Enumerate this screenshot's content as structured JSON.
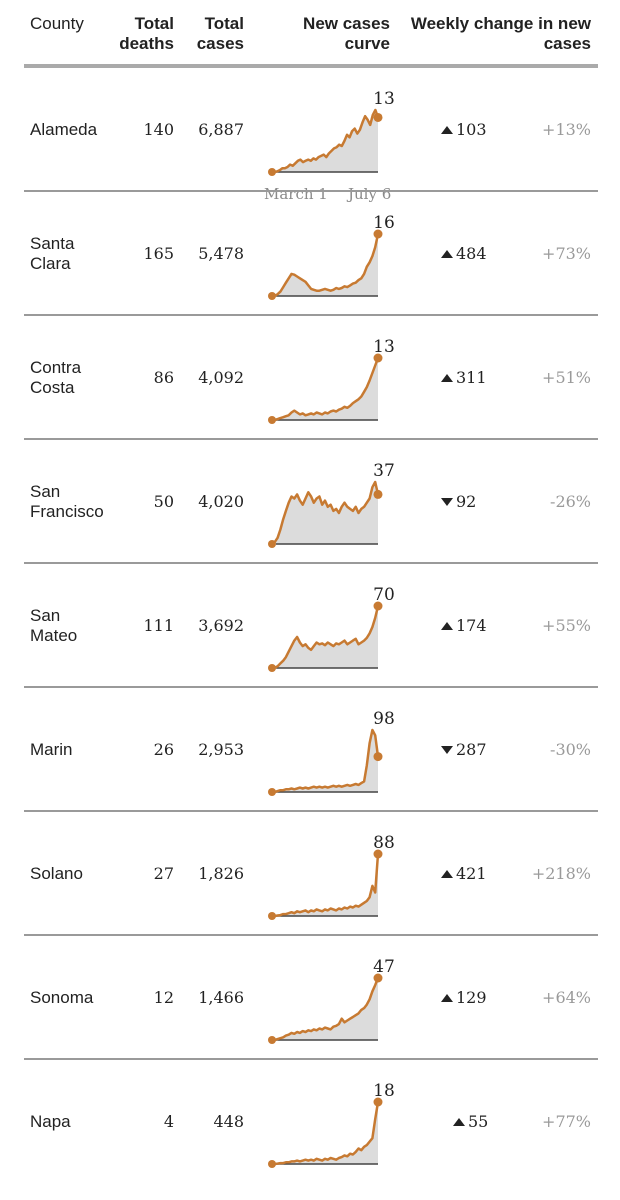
{
  "header": {
    "county": "County",
    "deaths_line1": "Total",
    "deaths_line2": "deaths",
    "cases_line1": "Total",
    "cases_line2": "cases",
    "curve_line1": "New cases",
    "curve_line2": "curve",
    "change_line1": "Weekly change in new",
    "change_line2": "cases"
  },
  "axis": {
    "start": "March 1",
    "end": "July 6"
  },
  "colors": {
    "curve": "#c77a32",
    "fill": "#dcdcdc",
    "baseline": "#444444",
    "up": "#222222",
    "down": "#222222",
    "pct": "#9a9a9a"
  },
  "rows": [
    {
      "county": [
        "Alameda"
      ],
      "deaths": "140",
      "cases": "6,887",
      "latest": "13",
      "direction": "up",
      "change": "103",
      "pct": "+13%",
      "chart_data": {
        "type": "area",
        "values": [
          0,
          0,
          0.5,
          1.5,
          3,
          3,
          4,
          6,
          5,
          7,
          9,
          10,
          8,
          9,
          10,
          9,
          11,
          10,
          12,
          13,
          14,
          12,
          15,
          17,
          19,
          20,
          22,
          21,
          25,
          30,
          28,
          33,
          35,
          31,
          34,
          40,
          45,
          42,
          38,
          46,
          50,
          44
        ],
        "end_marker": 44
      }
    },
    {
      "county": [
        "Santa",
        "Clara"
      ],
      "deaths": "165",
      "cases": "5,478",
      "latest": "16",
      "direction": "up",
      "change": "484",
      "pct": "+73%",
      "chart_data": {
        "type": "area",
        "values": [
          0,
          0,
          2,
          5,
          10,
          15,
          20,
          25,
          24,
          22,
          20,
          18,
          16,
          12,
          8,
          7,
          6,
          6,
          7,
          8,
          7,
          6,
          7,
          9,
          8,
          9,
          11,
          10,
          12,
          14,
          15,
          18,
          20,
          25,
          33,
          38,
          45,
          55,
          70
        ],
        "end_marker": 70
      }
    },
    {
      "county": [
        "Contra",
        "Costa"
      ],
      "deaths": "86",
      "cases": "4,092",
      "latest": "13",
      "direction": "up",
      "change": "311",
      "pct": "+51%",
      "chart_data": {
        "type": "area",
        "values": [
          0,
          0,
          1,
          2,
          3,
          4,
          5,
          8,
          10,
          8,
          6,
          7,
          5,
          6,
          7,
          6,
          8,
          7,
          6,
          8,
          7,
          9,
          10,
          9,
          11,
          12,
          14,
          13,
          15,
          18,
          20,
          22,
          25,
          30,
          35,
          42,
          50,
          58,
          66
        ],
        "end_marker": 66
      }
    },
    {
      "county": [
        "San",
        "Francisco"
      ],
      "deaths": "50",
      "cases": "4,020",
      "latest": "37",
      "direction": "down",
      "change": "92",
      "pct": "-26%",
      "chart_data": {
        "type": "area",
        "values": [
          0,
          2,
          6,
          14,
          24,
          32,
          40,
          46,
          44,
          48,
          42,
          38,
          44,
          50,
          46,
          40,
          44,
          46,
          38,
          42,
          36,
          38,
          32,
          34,
          30,
          36,
          40,
          36,
          34,
          32,
          36,
          30,
          34,
          36,
          40,
          44,
          55,
          60,
          48
        ],
        "end_marker": 48
      }
    },
    {
      "county": [
        "San",
        "Mateo"
      ],
      "deaths": "111",
      "cases": "3,692",
      "latest": "70",
      "direction": "up",
      "change": "174",
      "pct": "+55%",
      "chart_data": {
        "type": "area",
        "values": [
          0,
          0,
          2,
          5,
          8,
          12,
          18,
          24,
          30,
          34,
          28,
          24,
          26,
          22,
          20,
          24,
          28,
          26,
          27,
          25,
          28,
          26,
          24,
          27,
          26,
          28,
          30,
          26,
          28,
          30,
          32,
          26,
          28,
          30,
          33,
          38,
          45,
          55,
          68
        ],
        "end_marker": 68
      }
    },
    {
      "county": [
        "Marin"
      ],
      "deaths": "26",
      "cases": "2,953",
      "latest": "98",
      "direction": "down",
      "change": "287",
      "pct": "-30%",
      "chart_data": {
        "type": "area",
        "values": [
          0,
          0,
          1,
          2,
          2,
          3,
          3,
          4,
          3,
          4,
          5,
          4,
          5,
          4,
          5,
          6,
          5,
          6,
          5,
          6,
          5,
          6,
          7,
          6,
          7,
          6,
          7,
          8,
          7,
          8,
          9,
          8,
          10,
          12,
          30,
          55,
          70,
          64,
          40
        ],
        "end_marker": 40
      }
    },
    {
      "county": [
        "Solano"
      ],
      "deaths": "27",
      "cases": "1,826",
      "latest": "88",
      "direction": "up",
      "change": "421",
      "pct": "+218%",
      "chart_data": {
        "type": "area",
        "values": [
          0,
          0,
          0.5,
          1,
          2,
          2,
          3,
          4,
          3,
          5,
          4,
          5,
          6,
          4,
          6,
          5,
          7,
          6,
          5,
          7,
          6,
          8,
          7,
          6,
          8,
          7,
          9,
          8,
          10,
          9,
          11,
          10,
          12,
          14,
          16,
          20,
          32,
          25,
          66
        ],
        "end_marker": 66
      }
    },
    {
      "county": [
        "Sonoma"
      ],
      "deaths": "12",
      "cases": "1,466",
      "latest": "47",
      "direction": "up",
      "change": "129",
      "pct": "+64%",
      "chart_data": {
        "type": "area",
        "values": [
          0,
          0,
          1,
          2,
          3,
          5,
          6,
          8,
          7,
          9,
          8,
          10,
          9,
          11,
          10,
          12,
          11,
          13,
          12,
          14,
          13,
          12,
          15,
          16,
          18,
          24,
          20,
          22,
          24,
          26,
          28,
          30,
          34,
          36,
          40,
          46,
          55,
          62,
          70
        ],
        "end_marker": 70
      }
    },
    {
      "county": [
        "Napa"
      ],
      "deaths": "4",
      "cases": "448",
      "latest": "18",
      "direction": "up",
      "change": "55",
      "pct": "+77%",
      "chart_data": {
        "type": "area",
        "values": [
          0,
          0,
          0.5,
          1,
          1,
          2,
          2,
          3,
          3,
          4,
          3,
          4,
          5,
          4,
          5,
          4,
          6,
          5,
          4,
          6,
          5,
          7,
          6,
          5,
          7,
          8,
          10,
          9,
          12,
          11,
          14,
          18,
          16,
          20,
          22,
          26,
          30,
          52,
          72
        ],
        "end_marker": 72
      }
    }
  ]
}
